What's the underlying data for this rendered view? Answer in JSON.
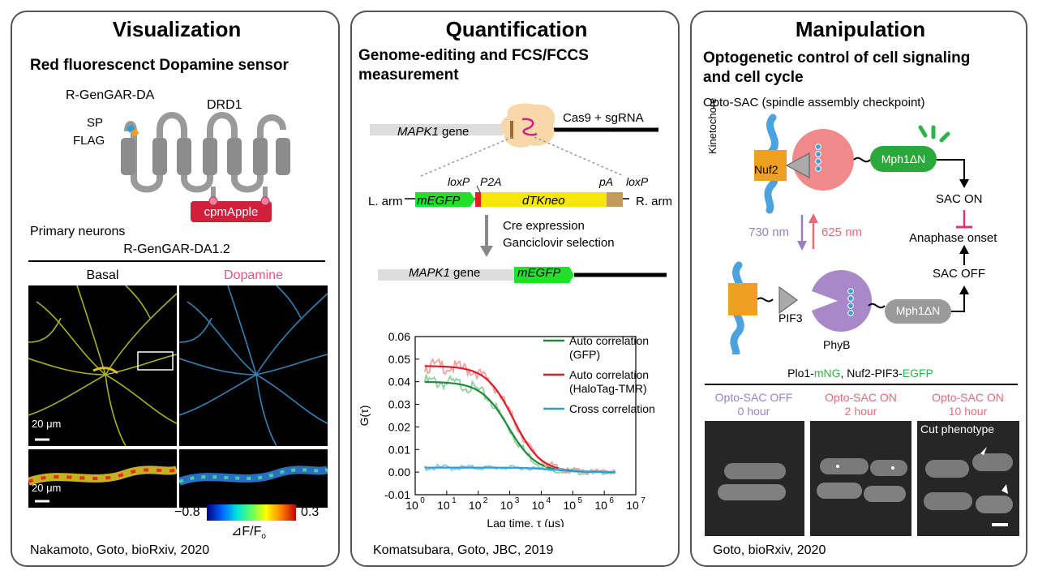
{
  "panels": {
    "visualization": {
      "title": "Visualization",
      "subtitle": "Red fluorescenct Dopamine sensor",
      "sensor_name": "R-GenGAR-DA",
      "receptor": "DRD1",
      "sp": "SP",
      "flag": "FLAG",
      "fp": "cpmApple",
      "neurons_label": "Primary neurons",
      "neurons_sensor": "R-GenGAR-DA1.2",
      "basal": "Basal",
      "dopamine": "Dopamine",
      "scale1": "20 μm",
      "scale2": "20 μm",
      "cbar_min": "−0.8",
      "cbar_max": "0.3",
      "cbar_label": "⊿F/F",
      "cbar_sub": "o",
      "citation": "Nakamoto, Goto, bioRxiv, 2020"
    },
    "quantification": {
      "title": "Quantification",
      "subtitle_line1": "Genome-editing and FCS/FCCS",
      "subtitle_line2": "measurement",
      "cas9": "Cas9 + sgRNA",
      "gene": "MAPK1",
      "gene_suffix": " gene",
      "loxp1": "loxP",
      "p2a": "P2A",
      "pa": "pA",
      "loxp2": "loxP",
      "larm": "L. arm",
      "rarm": "R. arm",
      "megfp": "mEGFP",
      "dtkneo": "dTKneo",
      "cre1": "Cre expression",
      "cre2": "Ganciclovir selection",
      "gene2": "MAPK1",
      "gene2_suffix": " gene",
      "megfp2": "mEGFP",
      "citation": "Komatsubara, Goto, JBC, 2019"
    },
    "manipulation": {
      "title": "Manipulation",
      "subtitle_line1": "Optogenetic control of cell signaling",
      "subtitle_line2": "and cell cycle",
      "optosac": "Opto-SAC (spindle assembly checkpoint)",
      "kinetochore": "Kinetochore",
      "nuf2": "Nuf2",
      "mph1_top": "Mph1ΔN",
      "mph1_bottom": "Mph1ΔN",
      "sac_on": "SAC ON",
      "anaphase": "Anaphase onset",
      "sac_off": "SAC OFF",
      "nm730": "730 nm",
      "nm625": "625 nm",
      "pif3": "PIF3",
      "phyb": "PhyB",
      "cells_label_a": "Plo1-",
      "cells_label_b": "mNG",
      "cells_label_c": ", Nuf2-PIF3-",
      "cells_label_d": "EGFP",
      "col1_l1": "Opto-SAC OFF",
      "col1_l2": "0 hour",
      "col2_l1": "Opto-SAC ON",
      "col2_l2": "2 hour",
      "col3_l1": "Opto-SAC ON",
      "col3_l2": "10 hour",
      "cut": "Cut phenotype",
      "citation": "Goto, bioRxiv, 2020"
    }
  },
  "colors": {
    "border": "#555555",
    "pink": "#e75480",
    "violet": "#9b7fc4",
    "green": "#2db34a",
    "red_fp": "#d21f3c"
  },
  "chart_data": {
    "type": "line",
    "ylabel": "G(τ)",
    "xlabel": "Lag time, τ (μs)",
    "xscale": "log",
    "xlim": [
      1,
      10000000
    ],
    "ylim": [
      -0.01,
      0.06
    ],
    "yticks": [
      "0.06",
      "0.05",
      "0.04",
      "0.03",
      "0.02",
      "0.01",
      "0.00",
      "-0.01"
    ],
    "xticks": [
      "10",
      "10",
      "10",
      "10",
      "10",
      "10",
      "10",
      "10"
    ],
    "xtick_exp": [
      "0",
      "1",
      "2",
      "3",
      "4",
      "5",
      "6",
      "7"
    ],
    "legend": [
      "Auto correlation\n(GFP)",
      "Auto correlation\n(HaloTag-TMR)",
      "Cross correlation"
    ],
    "legend_line1": [
      "Auto correlation",
      "Auto correlation",
      "Cross correlation"
    ],
    "legend_line2": [
      "(GFP)",
      "(HaloTag-TMR)",
      ""
    ],
    "series": [
      {
        "name": "Auto correlation (GFP)",
        "color": "#1f8a3a",
        "g0": 0.04,
        "tau": 900
      },
      {
        "name": "Auto correlation (HaloTag-TMR)",
        "color": "#d91e2b",
        "g0": 0.047,
        "tau": 1300
      },
      {
        "name": "Cross correlation",
        "color": "#2a9fd8",
        "g0": 0.002,
        "tau": 30000
      }
    ]
  }
}
